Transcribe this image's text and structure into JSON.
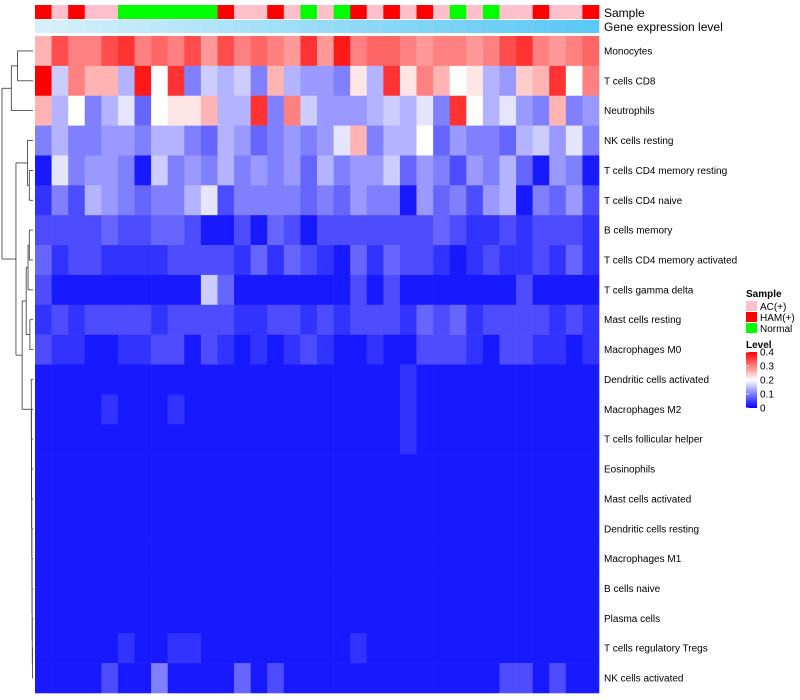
{
  "chart_data": {
    "type": "heatmap",
    "title": "",
    "annotation_tracks": [
      {
        "name": "Sample",
        "field": "sample_groups"
      },
      {
        "name": "Gene expression level",
        "field": "expression_track"
      }
    ],
    "columns": 34,
    "sample_groups": [
      "HAM(+)",
      "AC(+)",
      "HAM(+)",
      "AC(+)",
      "AC(+)",
      "Normal",
      "Normal",
      "Normal",
      "Normal",
      "Normal",
      "Normal",
      "HAM(+)",
      "AC(+)",
      "AC(+)",
      "HAM(+)",
      "AC(+)",
      "Normal",
      "AC(+)",
      "Normal",
      "HAM(+)",
      "AC(+)",
      "HAM(+)",
      "AC(+)",
      "HAM(+)",
      "AC(+)",
      "Normal",
      "AC(+)",
      "Normal",
      "AC(+)",
      "AC(+)",
      "HAM(+)",
      "AC(+)",
      "AC(+)",
      "HAM(+)"
    ],
    "expression_track": [
      0.1,
      0.12,
      0.14,
      0.16,
      0.18,
      0.2,
      0.22,
      0.24,
      0.26,
      0.28,
      0.3,
      0.32,
      0.34,
      0.36,
      0.38,
      0.4,
      0.42,
      0.44,
      0.46,
      0.48,
      0.5,
      0.52,
      0.54,
      0.56,
      0.58,
      0.6,
      0.62,
      0.64,
      0.66,
      0.68,
      0.7,
      0.72,
      0.74,
      0.76
    ],
    "rows": [
      {
        "label": "Monocytes",
        "values": [
          0.26,
          0.34,
          0.3,
          0.3,
          0.34,
          0.36,
          0.3,
          0.32,
          0.3,
          0.34,
          0.28,
          0.34,
          0.3,
          0.32,
          0.3,
          0.28,
          0.36,
          0.28,
          0.38,
          0.3,
          0.32,
          0.32,
          0.3,
          0.28,
          0.3,
          0.3,
          0.28,
          0.3,
          0.34,
          0.36,
          0.3,
          0.28,
          0.3,
          0.32
        ]
      },
      {
        "label": "T cells CD8",
        "values": [
          0.4,
          0.16,
          0.3,
          0.26,
          0.26,
          0.14,
          0.38,
          0.2,
          0.36,
          0.1,
          0.16,
          0.14,
          0.16,
          0.1,
          0.26,
          0.14,
          0.12,
          0.12,
          0.1,
          0.22,
          0.14,
          0.36,
          0.22,
          0.3,
          0.26,
          0.2,
          0.22,
          0.14,
          0.12,
          0.24,
          0.26,
          0.36,
          0.2,
          0.3
        ]
      },
      {
        "label": "Neutrophils",
        "values": [
          0.26,
          0.14,
          0.2,
          0.1,
          0.14,
          0.18,
          0.08,
          0.2,
          0.22,
          0.22,
          0.26,
          0.14,
          0.14,
          0.36,
          0.1,
          0.3,
          0.16,
          0.12,
          0.12,
          0.12,
          0.14,
          0.16,
          0.14,
          0.18,
          0.1,
          0.36,
          0.2,
          0.14,
          0.18,
          0.12,
          0.1,
          0.26,
          0.1,
          0.12
        ]
      },
      {
        "label": "NK cells resting",
        "values": [
          0.1,
          0.14,
          0.1,
          0.1,
          0.12,
          0.12,
          0.1,
          0.14,
          0.14,
          0.1,
          0.08,
          0.14,
          0.12,
          0.08,
          0.1,
          0.12,
          0.1,
          0.12,
          0.18,
          0.26,
          0.1,
          0.14,
          0.14,
          0.2,
          0.08,
          0.12,
          0.1,
          0.1,
          0.08,
          0.14,
          0.16,
          0.12,
          0.18,
          0.1
        ]
      },
      {
        "label": "T cells CD4 memory resting",
        "values": [
          0.02,
          0.18,
          0.1,
          0.12,
          0.12,
          0.1,
          0.02,
          0.16,
          0.1,
          0.12,
          0.1,
          0.14,
          0.1,
          0.12,
          0.1,
          0.12,
          0.08,
          0.14,
          0.1,
          0.12,
          0.12,
          0.16,
          0.08,
          0.12,
          0.1,
          0.06,
          0.12,
          0.1,
          0.14,
          0.08,
          0.02,
          0.12,
          0.1,
          0.02
        ]
      },
      {
        "label": "T cells CD4 naive",
        "values": [
          0.04,
          0.1,
          0.06,
          0.14,
          0.12,
          0.1,
          0.08,
          0.1,
          0.1,
          0.14,
          0.18,
          0.06,
          0.1,
          0.1,
          0.1,
          0.1,
          0.08,
          0.1,
          0.08,
          0.12,
          0.1,
          0.1,
          0.02,
          0.12,
          0.08,
          0.1,
          0.06,
          0.12,
          0.14,
          0.02,
          0.1,
          0.08,
          0.12,
          0.06
        ]
      },
      {
        "label": "B cells memory",
        "values": [
          0.06,
          0.06,
          0.06,
          0.06,
          0.08,
          0.06,
          0.06,
          0.08,
          0.08,
          0.06,
          0.02,
          0.02,
          0.06,
          0.02,
          0.08,
          0.06,
          0.02,
          0.06,
          0.06,
          0.06,
          0.06,
          0.06,
          0.06,
          0.06,
          0.08,
          0.06,
          0.04,
          0.04,
          0.06,
          0.04,
          0.06,
          0.06,
          0.06,
          0.04
        ]
      },
      {
        "label": "T cells CD4 memory activated",
        "values": [
          0.08,
          0.04,
          0.06,
          0.06,
          0.04,
          0.04,
          0.04,
          0.04,
          0.06,
          0.06,
          0.06,
          0.06,
          0.04,
          0.08,
          0.04,
          0.08,
          0.06,
          0.04,
          0.02,
          0.08,
          0.04,
          0.08,
          0.06,
          0.06,
          0.04,
          0.02,
          0.04,
          0.06,
          0.04,
          0.04,
          0.06,
          0.04,
          0.08,
          0.04
        ]
      },
      {
        "label": "T cells gamma delta",
        "values": [
          0.06,
          0.02,
          0.02,
          0.02,
          0.02,
          0.02,
          0.02,
          0.02,
          0.02,
          0.02,
          0.16,
          0.08,
          0.02,
          0.02,
          0.02,
          0.02,
          0.02,
          0.02,
          0.02,
          0.06,
          0.02,
          0.06,
          0.02,
          0.02,
          0.02,
          0.02,
          0.02,
          0.02,
          0.02,
          0.06,
          0.02,
          0.02,
          0.02,
          0.02
        ]
      },
      {
        "label": "Mast cells resting",
        "values": [
          0.04,
          0.06,
          0.04,
          0.06,
          0.06,
          0.06,
          0.06,
          0.04,
          0.06,
          0.06,
          0.06,
          0.06,
          0.04,
          0.04,
          0.06,
          0.06,
          0.04,
          0.06,
          0.04,
          0.06,
          0.06,
          0.06,
          0.04,
          0.08,
          0.06,
          0.08,
          0.04,
          0.06,
          0.06,
          0.06,
          0.06,
          0.04,
          0.06,
          0.04
        ]
      },
      {
        "label": "Macrophages M0",
        "values": [
          0.06,
          0.04,
          0.04,
          0.02,
          0.02,
          0.04,
          0.04,
          0.06,
          0.06,
          0.02,
          0.06,
          0.04,
          0.02,
          0.04,
          0.02,
          0.04,
          0.06,
          0.04,
          0.02,
          0.02,
          0.04,
          0.02,
          0.02,
          0.06,
          0.06,
          0.06,
          0.04,
          0.02,
          0.06,
          0.06,
          0.04,
          0.04,
          0.02,
          0.04
        ]
      },
      {
        "label": "Dendritic cells activated",
        "values": [
          0.02,
          0.02,
          0.02,
          0.02,
          0.02,
          0.02,
          0.02,
          0.02,
          0.02,
          0.02,
          0.02,
          0.02,
          0.02,
          0.02,
          0.02,
          0.02,
          0.02,
          0.02,
          0.02,
          0.02,
          0.02,
          0.02,
          0.04,
          0.02,
          0.02,
          0.02,
          0.02,
          0.02,
          0.02,
          0.02,
          0.02,
          0.02,
          0.02,
          0.02
        ]
      },
      {
        "label": "Macrophages M2",
        "values": [
          0.02,
          0.02,
          0.02,
          0.02,
          0.04,
          0.02,
          0.02,
          0.02,
          0.04,
          0.02,
          0.02,
          0.02,
          0.02,
          0.02,
          0.02,
          0.02,
          0.02,
          0.02,
          0.02,
          0.02,
          0.02,
          0.02,
          0.04,
          0.02,
          0.02,
          0.02,
          0.02,
          0.02,
          0.02,
          0.02,
          0.02,
          0.02,
          0.02,
          0.02
        ]
      },
      {
        "label": "T cells follicular helper",
        "values": [
          0.02,
          0.02,
          0.02,
          0.02,
          0.02,
          0.02,
          0.02,
          0.02,
          0.02,
          0.02,
          0.02,
          0.02,
          0.02,
          0.02,
          0.02,
          0.02,
          0.02,
          0.02,
          0.02,
          0.02,
          0.02,
          0.02,
          0.04,
          0.02,
          0.02,
          0.02,
          0.02,
          0.02,
          0.02,
          0.02,
          0.02,
          0.02,
          0.02,
          0.02
        ]
      },
      {
        "label": "Eosinophils",
        "values": [
          0.02,
          0.02,
          0.02,
          0.02,
          0.02,
          0.02,
          0.02,
          0.02,
          0.02,
          0.02,
          0.02,
          0.02,
          0.02,
          0.02,
          0.02,
          0.02,
          0.02,
          0.02,
          0.02,
          0.02,
          0.02,
          0.02,
          0.02,
          0.02,
          0.02,
          0.02,
          0.02,
          0.02,
          0.02,
          0.02,
          0.02,
          0.02,
          0.02,
          0.02
        ]
      },
      {
        "label": "Mast cells activated",
        "values": [
          0.02,
          0.02,
          0.02,
          0.02,
          0.02,
          0.02,
          0.02,
          0.02,
          0.02,
          0.02,
          0.02,
          0.02,
          0.02,
          0.02,
          0.02,
          0.02,
          0.02,
          0.02,
          0.02,
          0.02,
          0.02,
          0.02,
          0.02,
          0.02,
          0.02,
          0.02,
          0.02,
          0.02,
          0.02,
          0.02,
          0.02,
          0.02,
          0.02,
          0.02
        ]
      },
      {
        "label": "Dendritic cells resting",
        "values": [
          0.02,
          0.02,
          0.02,
          0.02,
          0.02,
          0.02,
          0.02,
          0.02,
          0.02,
          0.02,
          0.02,
          0.02,
          0.02,
          0.02,
          0.02,
          0.02,
          0.02,
          0.02,
          0.02,
          0.02,
          0.02,
          0.02,
          0.02,
          0.02,
          0.02,
          0.02,
          0.02,
          0.02,
          0.02,
          0.02,
          0.02,
          0.02,
          0.02,
          0.02
        ]
      },
      {
        "label": "Macrophages M1",
        "values": [
          0.02,
          0.02,
          0.02,
          0.02,
          0.02,
          0.02,
          0.02,
          0.02,
          0.02,
          0.02,
          0.02,
          0.02,
          0.02,
          0.02,
          0.02,
          0.02,
          0.02,
          0.02,
          0.02,
          0.02,
          0.02,
          0.02,
          0.02,
          0.02,
          0.02,
          0.02,
          0.02,
          0.02,
          0.02,
          0.02,
          0.02,
          0.02,
          0.02,
          0.02
        ]
      },
      {
        "label": "B cells naive",
        "values": [
          0.02,
          0.02,
          0.02,
          0.02,
          0.02,
          0.02,
          0.02,
          0.02,
          0.02,
          0.02,
          0.02,
          0.02,
          0.02,
          0.02,
          0.02,
          0.02,
          0.02,
          0.02,
          0.02,
          0.02,
          0.02,
          0.02,
          0.02,
          0.02,
          0.02,
          0.02,
          0.02,
          0.02,
          0.02,
          0.02,
          0.02,
          0.02,
          0.02,
          0.02
        ]
      },
      {
        "label": "Plasma cells",
        "values": [
          0.02,
          0.02,
          0.02,
          0.02,
          0.02,
          0.02,
          0.02,
          0.02,
          0.02,
          0.02,
          0.02,
          0.02,
          0.02,
          0.02,
          0.02,
          0.02,
          0.02,
          0.02,
          0.02,
          0.02,
          0.02,
          0.02,
          0.02,
          0.02,
          0.02,
          0.02,
          0.02,
          0.02,
          0.02,
          0.02,
          0.02,
          0.02,
          0.02,
          0.02
        ]
      },
      {
        "label": "T cells regulatory  Tregs",
        "values": [
          0.02,
          0.02,
          0.02,
          0.02,
          0.02,
          0.04,
          0.02,
          0.02,
          0.04,
          0.04,
          0.02,
          0.02,
          0.02,
          0.02,
          0.02,
          0.02,
          0.02,
          0.02,
          0.02,
          0.04,
          0.02,
          0.02,
          0.02,
          0.02,
          0.02,
          0.02,
          0.02,
          0.02,
          0.02,
          0.02,
          0.02,
          0.02,
          0.02,
          0.02
        ]
      },
      {
        "label": "NK cells activated",
        "values": [
          0.02,
          0.02,
          0.02,
          0.02,
          0.06,
          0.02,
          0.02,
          0.1,
          0.02,
          0.02,
          0.02,
          0.02,
          0.08,
          0.02,
          0.06,
          0.02,
          0.02,
          0.02,
          0.02,
          0.02,
          0.02,
          0.02,
          0.02,
          0.02,
          0.02,
          0.02,
          0.02,
          0.02,
          0.06,
          0.06,
          0.02,
          0.06,
          0.02,
          0.02
        ]
      }
    ],
    "color_scale": {
      "min": 0,
      "max": 0.4,
      "low": "#0000ff",
      "mid": "#ffffff",
      "high": "#ff0000",
      "midpoint": 0.2
    },
    "legend": {
      "placement": "right",
      "sample_title": "Sample",
      "sample_entries": [
        {
          "label": "AC(+)",
          "color": "#ffc0cb"
        },
        {
          "label": "HAM(+)",
          "color": "#ff0000"
        },
        {
          "label": "Normal",
          "color": "#00ff00"
        }
      ],
      "level_title": "Level",
      "level_ticks": [
        0.4,
        0.3,
        0.2,
        0.1,
        0
      ],
      "level_tick_labels": [
        "0.4",
        "0.3",
        "0.2",
        "0.1",
        "0"
      ]
    },
    "expression_track_colors": {
      "low": "#d6f0fa",
      "high": "#5bc8f5"
    },
    "dendrogram": "left (row clustering)"
  }
}
